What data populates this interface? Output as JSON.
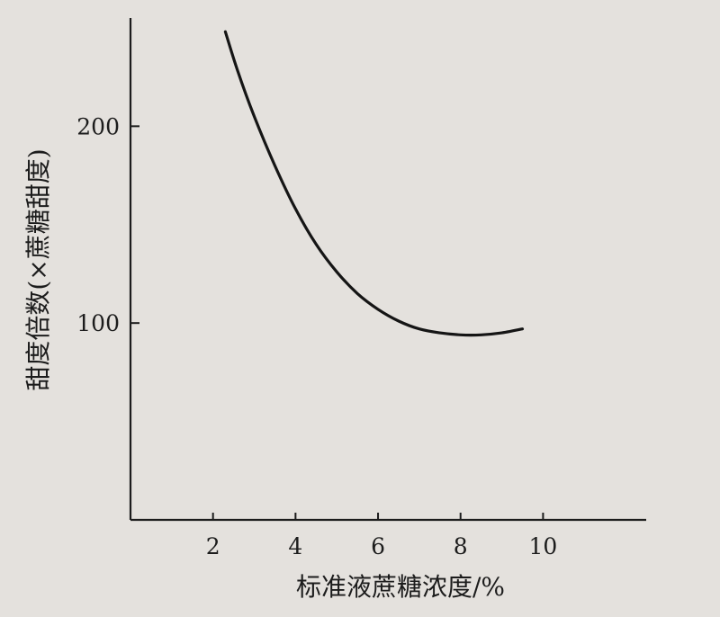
{
  "chart_data": {
    "type": "line",
    "title": "",
    "xlabel": "标准液蔗糖浓度/%",
    "ylabel": "甜度倍数(×蔗糖甜度)",
    "xlim": [
      0,
      12.5
    ],
    "ylim": [
      0,
      255
    ],
    "xticks": [
      2,
      4,
      6,
      8,
      10
    ],
    "yticks": [
      100,
      200
    ],
    "grid": false,
    "legend": "none",
    "series": [
      {
        "x": [
          2.3,
          2.6,
          3.0,
          3.5,
          4.0,
          4.5,
          5.0,
          5.5,
          6.0,
          6.5,
          7.0,
          7.5,
          8.0,
          8.5,
          9.0,
          9.5
        ],
        "values": [
          248,
          228,
          205,
          180,
          158,
          140,
          126,
          115,
          107,
          101,
          97,
          95,
          94,
          94,
          95,
          97
        ]
      }
    ],
    "colors": {
      "line": "#151515",
      "axis": "#1c1c1c",
      "background": "#e4e1dd"
    }
  }
}
